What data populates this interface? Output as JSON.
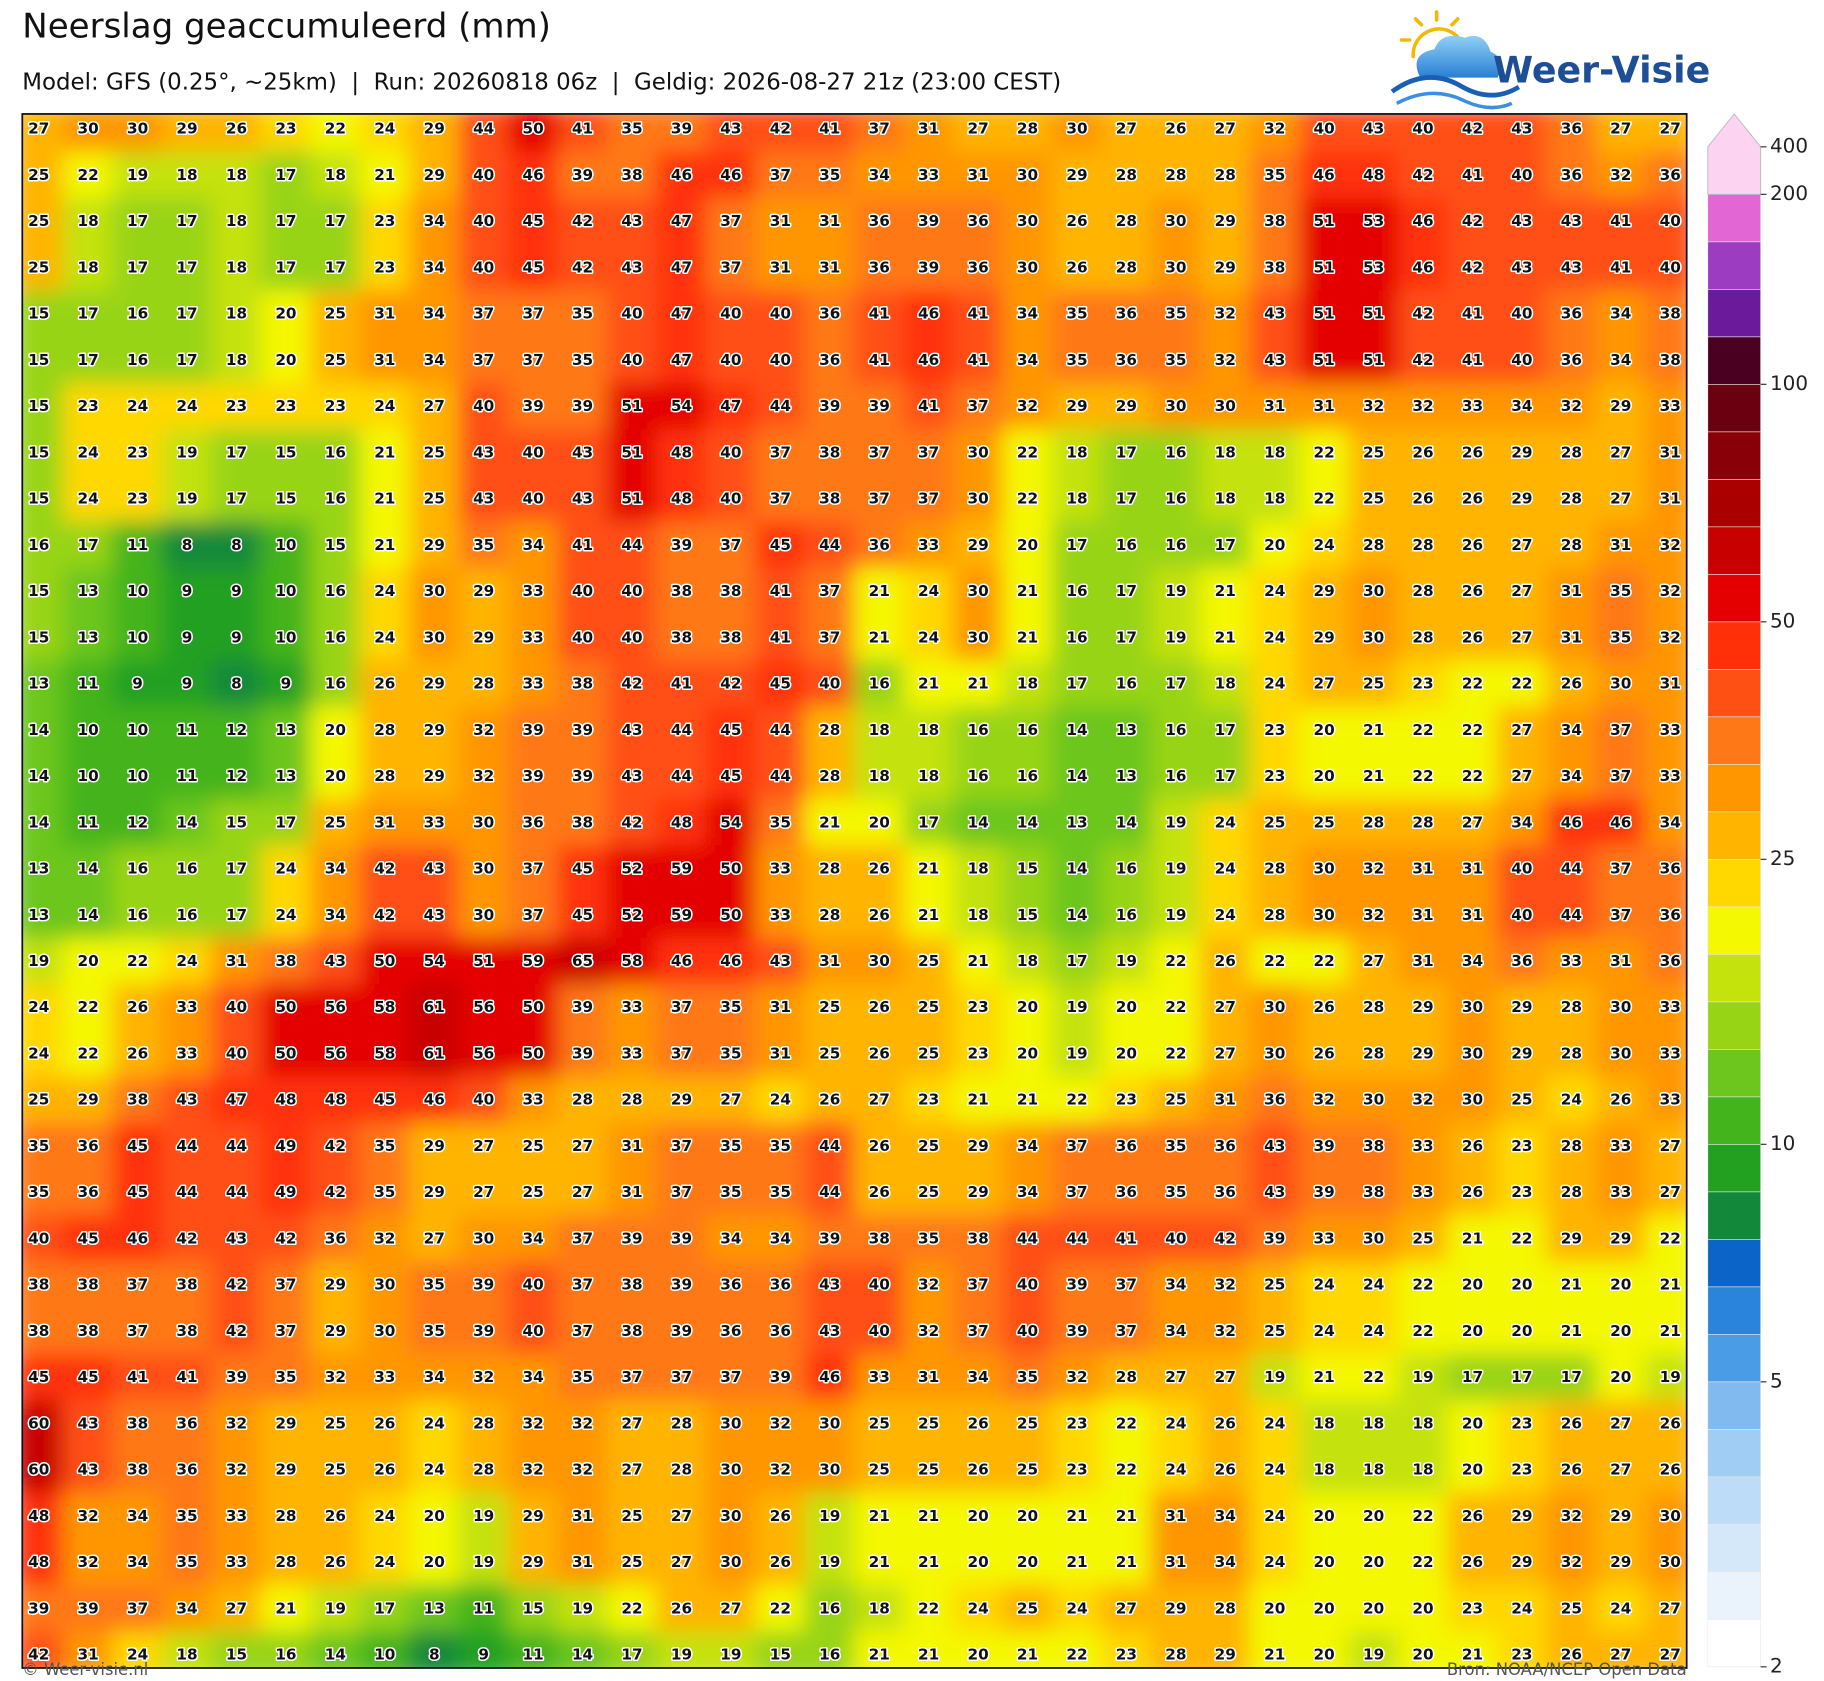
{
  "header": {
    "title": "Neerslag geaccumuleerd (mm)",
    "subtitle": "Model: GFS (0.25°, ~25km)  |  Run: 20260818 06z  |  Geldig: 2026-08-27 21z (23:00 CEST)",
    "logo": "Weer-Visie"
  },
  "grid": {
    "rows": [
      [
        27,
        30,
        30,
        29,
        26,
        23,
        22,
        24,
        29,
        44,
        50,
        41,
        35,
        39,
        43,
        42,
        41,
        37,
        31,
        27,
        28,
        30,
        27,
        26,
        27,
        32,
        40,
        43,
        40,
        42,
        43,
        36,
        27,
        27
      ],
      [
        25,
        22,
        19,
        18,
        18,
        17,
        18,
        21,
        29,
        40,
        46,
        39,
        38,
        46,
        46,
        37,
        35,
        34,
        33,
        31,
        30,
        29,
        28,
        28,
        28,
        35,
        46,
        48,
        42,
        41,
        40,
        36,
        32,
        36
      ],
      [
        25,
        18,
        17,
        17,
        18,
        17,
        17,
        23,
        34,
        40,
        45,
        42,
        43,
        47,
        37,
        31,
        31,
        36,
        39,
        36,
        30,
        26,
        28,
        30,
        29,
        38,
        51,
        53,
        46,
        42,
        43,
        43,
        41,
        40
      ],
      [
        25,
        18,
        17,
        17,
        18,
        17,
        17,
        23,
        34,
        40,
        45,
        42,
        43,
        47,
        37,
        31,
        31,
        36,
        39,
        36,
        30,
        26,
        28,
        30,
        29,
        38,
        51,
        53,
        46,
        42,
        43,
        43,
        41,
        40
      ],
      [
        15,
        17,
        16,
        17,
        18,
        20,
        25,
        31,
        34,
        37,
        37,
        35,
        40,
        47,
        40,
        40,
        36,
        41,
        46,
        41,
        34,
        35,
        36,
        35,
        32,
        43,
        51,
        51,
        42,
        41,
        40,
        36,
        34,
        38
      ],
      [
        15,
        17,
        16,
        17,
        18,
        20,
        25,
        31,
        34,
        37,
        37,
        35,
        40,
        47,
        40,
        40,
        36,
        41,
        46,
        41,
        34,
        35,
        36,
        35,
        32,
        43,
        51,
        51,
        42,
        41,
        40,
        36,
        34,
        38
      ],
      [
        15,
        23,
        24,
        24,
        23,
        23,
        23,
        24,
        27,
        40,
        39,
        39,
        51,
        54,
        47,
        44,
        39,
        39,
        41,
        37,
        32,
        29,
        29,
        30,
        30,
        31,
        31,
        32,
        32,
        33,
        34,
        32,
        29,
        33
      ],
      [
        15,
        24,
        23,
        19,
        17,
        15,
        16,
        21,
        25,
        43,
        40,
        43,
        51,
        48,
        40,
        37,
        38,
        37,
        37,
        30,
        22,
        18,
        17,
        16,
        18,
        18,
        22,
        25,
        26,
        26,
        29,
        28,
        27,
        31
      ],
      [
        15,
        24,
        23,
        19,
        17,
        15,
        16,
        21,
        25,
        43,
        40,
        43,
        51,
        48,
        40,
        37,
        38,
        37,
        37,
        30,
        22,
        18,
        17,
        16,
        18,
        18,
        22,
        25,
        26,
        26,
        29,
        28,
        27,
        31
      ],
      [
        16,
        17,
        11,
        8,
        8,
        10,
        15,
        21,
        29,
        35,
        34,
        41,
        44,
        39,
        37,
        45,
        44,
        36,
        33,
        29,
        20,
        17,
        16,
        16,
        17,
        20,
        24,
        28,
        28,
        26,
        27,
        28,
        31,
        32
      ],
      [
        15,
        13,
        10,
        9,
        9,
        10,
        16,
        24,
        30,
        29,
        33,
        40,
        40,
        38,
        38,
        41,
        37,
        21,
        24,
        30,
        21,
        16,
        17,
        19,
        21,
        24,
        29,
        30,
        28,
        26,
        27,
        31,
        35,
        32
      ],
      [
        15,
        13,
        10,
        9,
        9,
        10,
        16,
        24,
        30,
        29,
        33,
        40,
        40,
        38,
        38,
        41,
        37,
        21,
        24,
        30,
        21,
        16,
        17,
        19,
        21,
        24,
        29,
        30,
        28,
        26,
        27,
        31,
        35,
        32
      ],
      [
        13,
        11,
        9,
        9,
        8,
        9,
        16,
        26,
        29,
        28,
        33,
        38,
        42,
        41,
        42,
        45,
        40,
        16,
        21,
        21,
        18,
        17,
        16,
        17,
        18,
        24,
        27,
        25,
        23,
        22,
        22,
        26,
        30,
        31
      ],
      [
        14,
        10,
        10,
        11,
        12,
        13,
        20,
        28,
        29,
        32,
        39,
        39,
        43,
        44,
        45,
        44,
        28,
        18,
        18,
        16,
        16,
        14,
        13,
        16,
        17,
        23,
        20,
        21,
        22,
        22,
        27,
        34,
        37,
        33
      ],
      [
        14,
        10,
        10,
        11,
        12,
        13,
        20,
        28,
        29,
        32,
        39,
        39,
        43,
        44,
        45,
        44,
        28,
        18,
        18,
        16,
        16,
        14,
        13,
        16,
        17,
        23,
        20,
        21,
        22,
        22,
        27,
        34,
        37,
        33
      ],
      [
        14,
        11,
        12,
        14,
        15,
        17,
        25,
        31,
        33,
        30,
        36,
        38,
        42,
        48,
        54,
        35,
        21,
        20,
        17,
        14,
        14,
        13,
        14,
        19,
        24,
        25,
        25,
        28,
        28,
        27,
        34,
        46,
        46,
        34
      ],
      [
        13,
        14,
        16,
        16,
        17,
        24,
        34,
        42,
        43,
        30,
        37,
        45,
        52,
        59,
        50,
        33,
        28,
        26,
        21,
        18,
        15,
        14,
        16,
        19,
        24,
        28,
        30,
        32,
        31,
        31,
        40,
        44,
        37,
        36
      ],
      [
        13,
        14,
        16,
        16,
        17,
        24,
        34,
        42,
        43,
        30,
        37,
        45,
        52,
        59,
        50,
        33,
        28,
        26,
        21,
        18,
        15,
        14,
        16,
        19,
        24,
        28,
        30,
        32,
        31,
        31,
        40,
        44,
        37,
        36
      ],
      [
        19,
        20,
        22,
        24,
        31,
        38,
        43,
        50,
        54,
        51,
        59,
        65,
        58,
        46,
        46,
        43,
        31,
        30,
        25,
        21,
        18,
        17,
        19,
        22,
        26,
        22,
        22,
        27,
        31,
        34,
        36,
        33,
        31,
        36
      ],
      [
        24,
        22,
        26,
        33,
        40,
        50,
        56,
        58,
        61,
        56,
        50,
        39,
        33,
        37,
        35,
        31,
        25,
        26,
        25,
        23,
        20,
        19,
        20,
        22,
        27,
        30,
        26,
        28,
        29,
        30,
        29,
        28,
        30,
        33
      ],
      [
        24,
        22,
        26,
        33,
        40,
        50,
        56,
        58,
        61,
        56,
        50,
        39,
        33,
        37,
        35,
        31,
        25,
        26,
        25,
        23,
        20,
        19,
        20,
        22,
        27,
        30,
        26,
        28,
        29,
        30,
        29,
        28,
        30,
        33
      ],
      [
        25,
        29,
        38,
        43,
        47,
        48,
        48,
        45,
        46,
        40,
        33,
        28,
        28,
        29,
        27,
        24,
        26,
        27,
        23,
        21,
        21,
        22,
        23,
        25,
        31,
        36,
        32,
        30,
        32,
        30,
        25,
        24,
        26,
        33
      ],
      [
        35,
        36,
        45,
        44,
        44,
        49,
        42,
        35,
        29,
        27,
        25,
        27,
        31,
        37,
        35,
        35,
        44,
        26,
        25,
        29,
        34,
        37,
        36,
        35,
        36,
        43,
        39,
        38,
        33,
        26,
        23,
        28,
        33,
        27
      ],
      [
        35,
        36,
        45,
        44,
        44,
        49,
        42,
        35,
        29,
        27,
        25,
        27,
        31,
        37,
        35,
        35,
        44,
        26,
        25,
        29,
        34,
        37,
        36,
        35,
        36,
        43,
        39,
        38,
        33,
        26,
        23,
        28,
        33,
        27
      ],
      [
        40,
        45,
        46,
        42,
        43,
        42,
        36,
        32,
        27,
        30,
        34,
        37,
        39,
        39,
        34,
        34,
        39,
        38,
        35,
        38,
        44,
        44,
        41,
        40,
        42,
        39,
        33,
        30,
        25,
        21,
        22,
        29,
        29,
        22
      ],
      [
        38,
        38,
        37,
        38,
        42,
        37,
        29,
        30,
        35,
        39,
        40,
        37,
        38,
        39,
        36,
        36,
        43,
        40,
        32,
        37,
        40,
        39,
        37,
        34,
        32,
        25,
        24,
        24,
        22,
        20,
        20,
        21,
        20,
        21
      ],
      [
        38,
        38,
        37,
        38,
        42,
        37,
        29,
        30,
        35,
        39,
        40,
        37,
        38,
        39,
        36,
        36,
        43,
        40,
        32,
        37,
        40,
        39,
        37,
        34,
        32,
        25,
        24,
        24,
        22,
        20,
        20,
        21,
        20,
        21
      ],
      [
        45,
        45,
        41,
        41,
        39,
        35,
        32,
        33,
        34,
        32,
        34,
        35,
        37,
        37,
        37,
        39,
        46,
        33,
        31,
        34,
        35,
        32,
        28,
        27,
        27,
        19,
        21,
        22,
        19,
        17,
        17,
        17,
        20,
        19
      ],
      [
        60,
        43,
        38,
        36,
        32,
        29,
        25,
        26,
        24,
        28,
        32,
        32,
        27,
        28,
        30,
        32,
        30,
        25,
        25,
        26,
        25,
        23,
        22,
        24,
        26,
        24,
        18,
        18,
        18,
        20,
        23,
        26,
        27,
        26
      ],
      [
        60,
        43,
        38,
        36,
        32,
        29,
        25,
        26,
        24,
        28,
        32,
        32,
        27,
        28,
        30,
        32,
        30,
        25,
        25,
        26,
        25,
        23,
        22,
        24,
        26,
        24,
        18,
        18,
        18,
        20,
        23,
        26,
        27,
        26
      ],
      [
        48,
        32,
        34,
        35,
        33,
        28,
        26,
        24,
        20,
        19,
        29,
        31,
        25,
        27,
        30,
        26,
        19,
        21,
        21,
        20,
        20,
        21,
        21,
        31,
        34,
        24,
        20,
        20,
        22,
        26,
        29,
        32,
        29,
        30
      ],
      [
        48,
        32,
        34,
        35,
        33,
        28,
        26,
        24,
        20,
        19,
        29,
        31,
        25,
        27,
        30,
        26,
        19,
        21,
        21,
        20,
        20,
        21,
        21,
        31,
        34,
        24,
        20,
        20,
        22,
        26,
        29,
        32,
        29,
        30
      ],
      [
        39,
        39,
        37,
        34,
        27,
        21,
        19,
        17,
        13,
        11,
        15,
        19,
        22,
        26,
        27,
        22,
        16,
        18,
        22,
        24,
        25,
        24,
        27,
        29,
        28,
        20,
        20,
        20,
        20,
        23,
        24,
        25,
        24,
        27
      ],
      [
        42,
        31,
        24,
        18,
        15,
        16,
        14,
        10,
        8,
        9,
        11,
        14,
        17,
        19,
        19,
        15,
        16,
        21,
        21,
        20,
        21,
        22,
        23,
        28,
        29,
        21,
        20,
        19,
        20,
        21,
        23,
        26,
        27,
        27
      ]
    ]
  },
  "colorbar": {
    "ticks": [
      2,
      5,
      10,
      25,
      50,
      100,
      200,
      400
    ],
    "levels": [
      2,
      2.5,
      3,
      3.5,
      4,
      4.5,
      5,
      6,
      7,
      8,
      9,
      10,
      12.5,
      15,
      17.5,
      20,
      22.5,
      25,
      30,
      35,
      40,
      45,
      50,
      60,
      70,
      80,
      90,
      100,
      125,
      150,
      175,
      200,
      400
    ],
    "colors": [
      "#ffffff",
      "#eaf3fc",
      "#d4e8fa",
      "#bcdcf7",
      "#a0cdf4",
      "#80baee",
      "#4b9ce6",
      "#2a84dc",
      "#0b64c8",
      "#12893a",
      "#22a020",
      "#44b41c",
      "#6cc61e",
      "#98d416",
      "#c4e20c",
      "#f4f800",
      "#ffd800",
      "#ffb400",
      "#ff9600",
      "#ff7818",
      "#ff5014",
      "#ff3008",
      "#e40000",
      "#c80000",
      "#aa0000",
      "#8a0008",
      "#6a0010",
      "#4a0020",
      "#6a1a9a",
      "#9c3cc0",
      "#e266d4",
      "#fcd4f2"
    ]
  },
  "footer": {
    "left": "© Weer-visie.nl",
    "right": "Bron: NOAA/NCEP Open Data"
  }
}
